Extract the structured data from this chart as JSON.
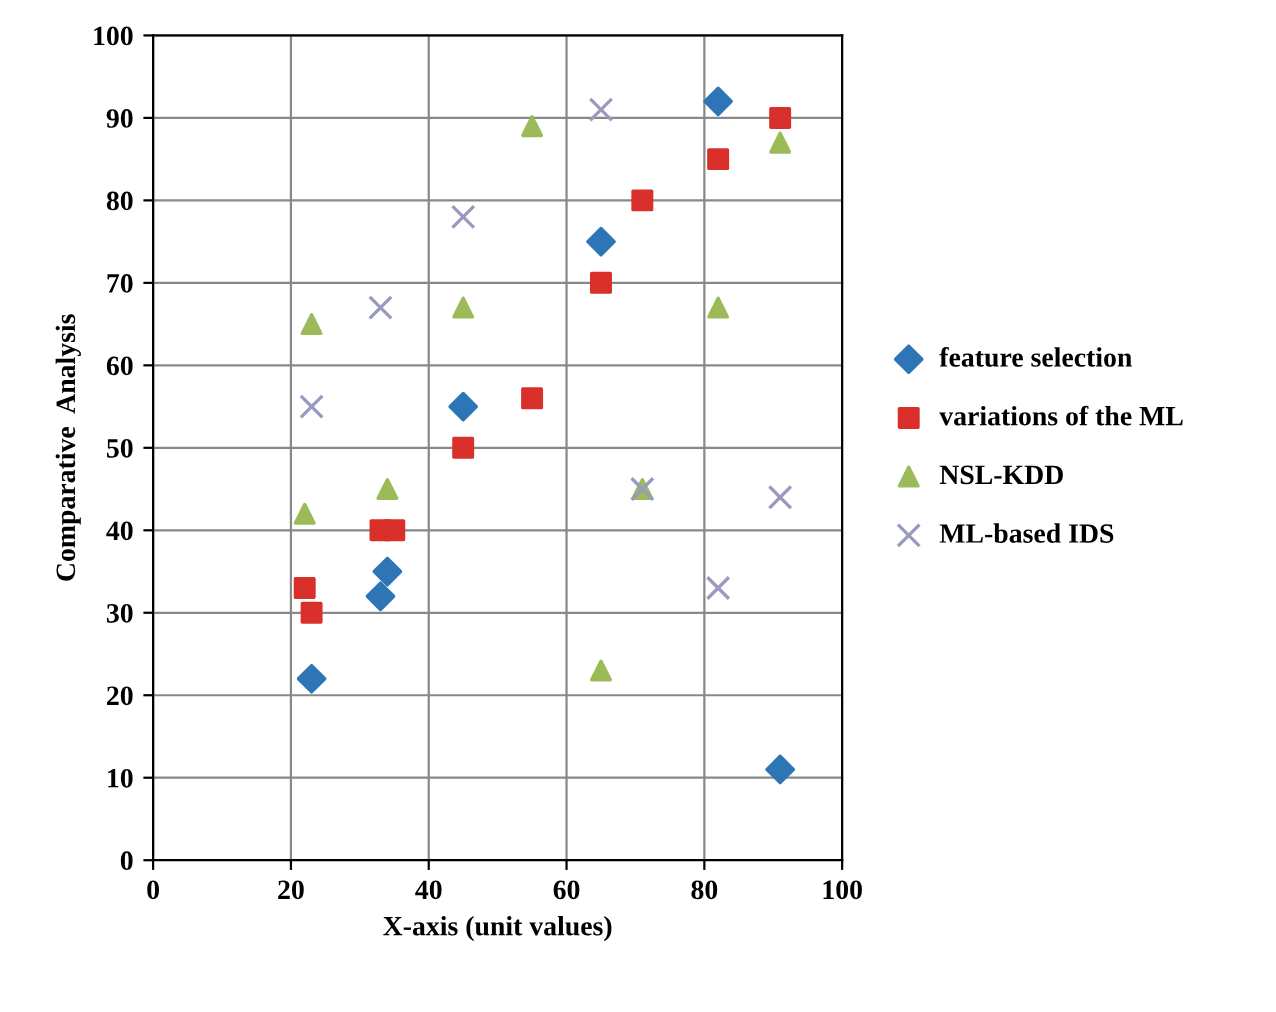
{
  "chart_data": {
    "type": "scatter",
    "xlabel": "X-axis (unit values)",
    "ylabel": "Comparative  Analysis",
    "xlim": [
      0,
      100
    ],
    "ylim": [
      0,
      100
    ],
    "xticks": [
      0,
      20,
      40,
      60,
      80,
      100
    ],
    "yticks": [
      0,
      10,
      20,
      30,
      40,
      50,
      60,
      70,
      80,
      90,
      100
    ],
    "grid": true,
    "legend": "right",
    "series": [
      {
        "name": "feature selection",
        "color": "#2e75b6",
        "marker": "diamond",
        "x": [
          23,
          33,
          34,
          45,
          55,
          65,
          82,
          91
        ],
        "values": [
          22,
          32,
          35,
          55,
          null,
          75,
          92,
          11
        ]
      },
      {
        "name": "variations of the ML",
        "color": "#d9302c",
        "marker": "square",
        "x": [
          22,
          23,
          33,
          35,
          45,
          55,
          65,
          71,
          82,
          91
        ],
        "values": [
          33,
          30,
          40,
          40,
          50,
          56,
          70,
          80,
          85,
          90
        ]
      },
      {
        "name": "NSL-KDD",
        "color": "#9bbb59",
        "marker": "triangle",
        "x": [
          22,
          23,
          34,
          45,
          55,
          65,
          71,
          82,
          91
        ],
        "values": [
          42,
          65,
          45,
          67,
          89,
          23,
          45,
          67,
          87
        ]
      },
      {
        "name": "ML-based IDS",
        "color": "#9a9ac0",
        "marker": "cross",
        "x": [
          23,
          33,
          45,
          65,
          71,
          82,
          91
        ],
        "values": [
          55,
          67,
          78,
          91,
          45,
          33,
          44
        ]
      }
    ]
  }
}
